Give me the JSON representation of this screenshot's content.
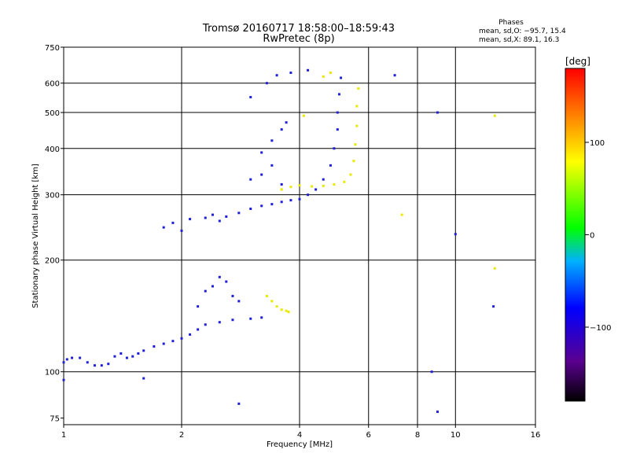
{
  "chart_data": {
    "type": "scatter",
    "title": "Tromsø 20160717 18:58:00–18:59:43",
    "subtitle": "RwPretec (8p)",
    "stats": {
      "heading": "Phases",
      "line1": "mean, sd,O: −95.7, 15.4",
      "line2": "mean, sd,X:  89.1, 16.3"
    },
    "xlabel": "Frequency [MHz]",
    "ylabel": "Stationary phase Virtual Height [km]",
    "x_scale": "log",
    "y_scale": "log",
    "xlim": [
      1,
      16
    ],
    "ylim": [
      72,
      750
    ],
    "x_ticks": [
      1,
      2,
      4,
      6,
      8,
      10,
      16
    ],
    "x_tick_labels": [
      "1",
      "2",
      "4",
      "6",
      "8",
      "10",
      "16"
    ],
    "y_ticks": [
      75,
      100,
      200,
      300,
      400,
      500,
      600,
      750
    ],
    "y_tick_labels": [
      "75",
      "100",
      "200",
      "300",
      "400",
      "500",
      "600",
      "750"
    ],
    "grid": true,
    "colorbar": {
      "label": "[deg]",
      "range": [
        -180,
        180
      ],
      "ticks": [
        100,
        0,
        -100
      ],
      "tick_labels": [
        "100",
        "0",
        "−100"
      ],
      "colors": [
        "#000000",
        "#5a0090",
        "#0000ff",
        "#00b0ff",
        "#00ff00",
        "#ffff00",
        "#ff8000",
        "#ff0000"
      ]
    },
    "series": [
      {
        "name": "O",
        "color": "#1f1fd8",
        "points": [
          [
            1.0,
            106
          ],
          [
            1.02,
            108
          ],
          [
            1.05,
            109
          ],
          [
            1.1,
            109
          ],
          [
            1.15,
            106
          ],
          [
            1.2,
            104
          ],
          [
            1.25,
            104
          ],
          [
            1.3,
            105
          ],
          [
            1.35,
            110
          ],
          [
            1.4,
            112
          ],
          [
            1.45,
            109
          ],
          [
            1.5,
            110
          ],
          [
            1.55,
            112
          ],
          [
            1.6,
            114
          ],
          [
            1.7,
            117
          ],
          [
            1.8,
            119
          ],
          [
            1.9,
            121
          ],
          [
            2.0,
            123
          ],
          [
            2.1,
            126
          ],
          [
            2.2,
            130
          ],
          [
            2.3,
            134
          ],
          [
            2.5,
            136
          ],
          [
            2.7,
            138
          ],
          [
            3.0,
            139
          ],
          [
            3.2,
            140
          ],
          [
            2.2,
            150
          ],
          [
            2.3,
            165
          ],
          [
            2.4,
            170
          ],
          [
            2.5,
            180
          ],
          [
            2.6,
            175
          ],
          [
            2.7,
            160
          ],
          [
            2.8,
            155
          ],
          [
            1.8,
            245
          ],
          [
            1.9,
            252
          ],
          [
            2.0,
            240
          ],
          [
            2.1,
            258
          ],
          [
            2.3,
            260
          ],
          [
            2.4,
            265
          ],
          [
            2.5,
            255
          ],
          [
            2.6,
            262
          ],
          [
            2.8,
            268
          ],
          [
            3.0,
            275
          ],
          [
            3.2,
            280
          ],
          [
            3.4,
            283
          ],
          [
            3.6,
            287
          ],
          [
            3.8,
            290
          ],
          [
            4.0,
            292
          ],
          [
            4.2,
            300
          ],
          [
            4.4,
            310
          ],
          [
            4.6,
            330
          ],
          [
            4.8,
            360
          ],
          [
            4.9,
            400
          ],
          [
            5.0,
            450
          ],
          [
            5.0,
            500
          ],
          [
            5.05,
            560
          ],
          [
            5.1,
            620
          ],
          [
            3.2,
            390
          ],
          [
            3.4,
            420
          ],
          [
            3.6,
            450
          ],
          [
            3.7,
            470
          ],
          [
            3.0,
            550
          ],
          [
            3.3,
            600
          ],
          [
            3.5,
            630
          ],
          [
            3.8,
            640
          ],
          [
            4.2,
            650
          ],
          [
            3.4,
            360
          ],
          [
            3.2,
            340
          ],
          [
            3.0,
            330
          ],
          [
            3.6,
            320
          ],
          [
            7.0,
            630
          ],
          [
            9.0,
            500
          ],
          [
            9.0,
            78
          ],
          [
            8.7,
            100
          ],
          [
            1.0,
            95
          ],
          [
            1.6,
            96
          ],
          [
            2.8,
            82
          ],
          [
            10.0,
            235
          ],
          [
            12.5,
            150
          ]
        ]
      },
      {
        "name": "X",
        "color": "#e8e800",
        "points": [
          [
            3.3,
            160
          ],
          [
            3.4,
            155
          ],
          [
            3.5,
            150
          ],
          [
            3.6,
            147
          ],
          [
            3.7,
            146
          ],
          [
            3.75,
            145
          ],
          [
            3.6,
            310
          ],
          [
            3.8,
            315
          ],
          [
            4.0,
            318
          ],
          [
            4.3,
            316
          ],
          [
            4.6,
            317
          ],
          [
            4.9,
            320
          ],
          [
            5.2,
            325
          ],
          [
            5.4,
            340
          ],
          [
            5.5,
            370
          ],
          [
            5.55,
            410
          ],
          [
            5.6,
            460
          ],
          [
            5.6,
            520
          ],
          [
            5.65,
            580
          ],
          [
            4.8,
            640
          ],
          [
            4.6,
            625
          ],
          [
            4.1,
            490
          ],
          [
            7.3,
            265
          ],
          [
            12.6,
            190
          ],
          [
            12.6,
            490
          ]
        ]
      }
    ]
  }
}
